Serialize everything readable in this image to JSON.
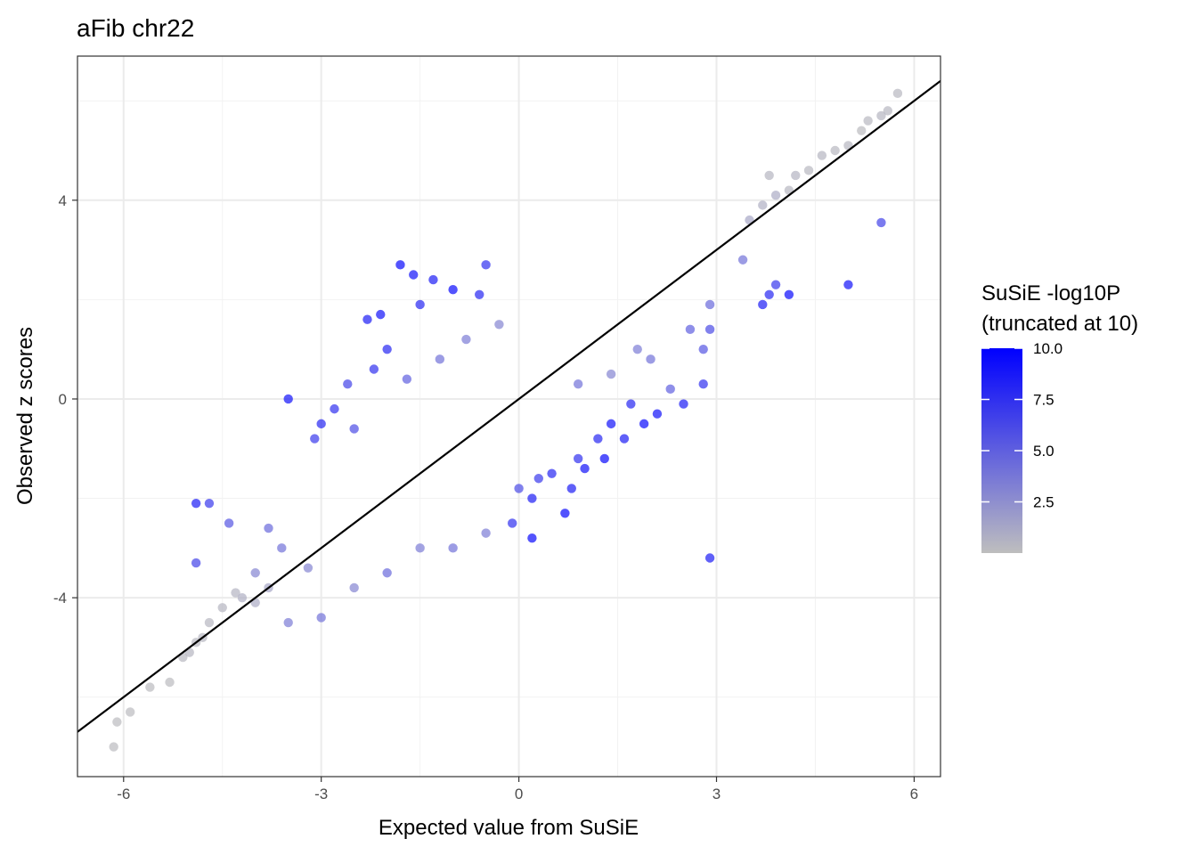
{
  "chart_data": {
    "type": "scatter",
    "title": "aFib chr22",
    "xlabel": "Expected value from SuSiE",
    "ylabel": "Observed z scores",
    "xlim": [
      -6.7,
      6.4
    ],
    "ylim": [
      -7.6,
      6.9
    ],
    "x_ticks": [
      -6,
      -3,
      0,
      3,
      6
    ],
    "x_tick_labels": [
      "-6",
      "-3",
      "0",
      "3",
      "6"
    ],
    "y_ticks": [
      -4,
      0,
      4
    ],
    "y_tick_labels": [
      "-4",
      "0",
      "4"
    ],
    "grid": true,
    "reference_line": {
      "slope": 1.0,
      "intercept": 0.0,
      "color": "#000000"
    },
    "color_scale": {
      "title_line1": "SuSiE -log10P",
      "title_line2": "(truncated at 10)",
      "low_color": "#bebebe",
      "high_color": "#0000ff",
      "range": [
        0,
        10
      ],
      "ticks": [
        2.5,
        5.0,
        7.5,
        10.0
      ],
      "tick_labels": [
        "2.5",
        "5.0",
        "7.5",
        "10.0"
      ]
    },
    "legend_placement": "right",
    "points": [
      [
        5.75,
        6.15,
        0.3
      ],
      [
        5.6,
        5.8,
        0.4
      ],
      [
        5.5,
        5.7,
        0.5
      ],
      [
        5.3,
        5.6,
        0.3
      ],
      [
        5.2,
        5.4,
        0.2
      ],
      [
        5.0,
        5.1,
        0.4
      ],
      [
        4.8,
        5.0,
        0.3
      ],
      [
        4.6,
        4.9,
        0.5
      ],
      [
        4.4,
        4.6,
        0.3
      ],
      [
        4.2,
        4.5,
        0.6
      ],
      [
        4.1,
        4.2,
        0.4
      ],
      [
        3.9,
        4.1,
        1.0
      ],
      [
        3.7,
        3.9,
        0.8
      ],
      [
        3.8,
        4.5,
        0.5
      ],
      [
        3.5,
        3.6,
        1.2
      ],
      [
        5.5,
        3.55,
        6.5
      ],
      [
        5.0,
        2.3,
        9.0
      ],
      [
        4.1,
        2.1,
        9.5
      ],
      [
        3.8,
        2.1,
        8.0
      ],
      [
        3.7,
        1.9,
        8.5
      ],
      [
        3.9,
        2.3,
        7.0
      ],
      [
        3.4,
        2.8,
        4.0
      ],
      [
        2.9,
        -3.2,
        8.5
      ],
      [
        2.9,
        1.4,
        6.0
      ],
      [
        2.8,
        1.0,
        5.5
      ],
      [
        2.8,
        0.3,
        7.5
      ],
      [
        2.9,
        1.9,
        4.5
      ],
      [
        2.6,
        1.4,
        5.0
      ],
      [
        2.5,
        -0.1,
        8.5
      ],
      [
        2.3,
        0.2,
        5.0
      ],
      [
        2.1,
        -0.3,
        9.0
      ],
      [
        1.9,
        -0.5,
        9.5
      ],
      [
        1.7,
        -0.1,
        8.0
      ],
      [
        1.6,
        -0.8,
        8.5
      ],
      [
        1.4,
        -0.5,
        9.0
      ],
      [
        1.3,
        -1.2,
        9.5
      ],
      [
        1.2,
        -0.8,
        8.0
      ],
      [
        1.0,
        -1.4,
        9.0
      ],
      [
        0.9,
        -1.2,
        7.5
      ],
      [
        0.8,
        -1.8,
        8.5
      ],
      [
        0.7,
        -2.3,
        9.5
      ],
      [
        0.5,
        -1.5,
        8.0
      ],
      [
        0.3,
        -1.6,
        7.0
      ],
      [
        0.2,
        -2.0,
        8.5
      ],
      [
        0.0,
        -1.8,
        6.0
      ],
      [
        -0.1,
        -2.5,
        7.5
      ],
      [
        0.2,
        -2.8,
        9.5
      ],
      [
        0.9,
        0.3,
        4.0
      ],
      [
        1.4,
        0.5,
        3.0
      ],
      [
        1.8,
        1.0,
        3.5
      ],
      [
        2.0,
        0.8,
        4.0
      ],
      [
        -1.8,
        2.7,
        9.5
      ],
      [
        -1.6,
        2.5,
        9.0
      ],
      [
        -1.3,
        2.4,
        8.5
      ],
      [
        -1.0,
        2.2,
        9.5
      ],
      [
        -0.6,
        2.1,
        8.0
      ],
      [
        -0.5,
        2.7,
        7.5
      ],
      [
        -1.5,
        1.9,
        8.0
      ],
      [
        -2.1,
        1.7,
        9.0
      ],
      [
        -2.3,
        1.6,
        8.5
      ],
      [
        -2.0,
        1.0,
        8.0
      ],
      [
        -2.2,
        0.6,
        7.5
      ],
      [
        -2.6,
        0.3,
        6.5
      ],
      [
        -2.8,
        -0.2,
        7.5
      ],
      [
        -3.0,
        -0.5,
        8.0
      ],
      [
        -3.1,
        -0.8,
        7.0
      ],
      [
        -3.5,
        0.0,
        9.0
      ],
      [
        -2.5,
        -0.6,
        6.0
      ],
      [
        -1.7,
        0.4,
        5.0
      ],
      [
        -1.2,
        0.8,
        4.0
      ],
      [
        -0.8,
        1.2,
        3.5
      ],
      [
        -0.3,
        1.5,
        3.0
      ],
      [
        -4.9,
        -2.1,
        8.5
      ],
      [
        -4.7,
        -2.1,
        7.0
      ],
      [
        -4.9,
        -3.3,
        6.5
      ],
      [
        -4.4,
        -2.5,
        5.5
      ],
      [
        -3.8,
        -2.6,
        4.5
      ],
      [
        -3.6,
        -3.0,
        4.0
      ],
      [
        -3.2,
        -3.4,
        3.0
      ],
      [
        -3.5,
        -4.5,
        3.5
      ],
      [
        -3.0,
        -4.4,
        4.0
      ],
      [
        -2.5,
        -3.8,
        3.0
      ],
      [
        -2.0,
        -3.5,
        4.5
      ],
      [
        -1.5,
        -3.0,
        3.5
      ],
      [
        -1.0,
        -3.0,
        4.0
      ],
      [
        -0.5,
        -2.7,
        3.5
      ],
      [
        -4.0,
        -3.5,
        3.0
      ],
      [
        -4.3,
        -3.9,
        0.6
      ],
      [
        -4.5,
        -4.2,
        0.5
      ],
      [
        -4.7,
        -4.5,
        0.4
      ],
      [
        -4.9,
        -4.9,
        0.3
      ],
      [
        -5.1,
        -5.2,
        0.3
      ],
      [
        -5.3,
        -5.7,
        0.2
      ],
      [
        -5.6,
        -5.8,
        0.2
      ],
      [
        -5.9,
        -6.3,
        0.2
      ],
      [
        -6.1,
        -6.5,
        0.2
      ],
      [
        -6.15,
        -7.0,
        0.2
      ],
      [
        -5.0,
        -5.1,
        0.5
      ],
      [
        -4.8,
        -4.8,
        0.4
      ],
      [
        -4.2,
        -4.0,
        0.8
      ],
      [
        -4.0,
        -4.1,
        1.0
      ],
      [
        -3.8,
        -3.8,
        1.2
      ]
    ]
  }
}
